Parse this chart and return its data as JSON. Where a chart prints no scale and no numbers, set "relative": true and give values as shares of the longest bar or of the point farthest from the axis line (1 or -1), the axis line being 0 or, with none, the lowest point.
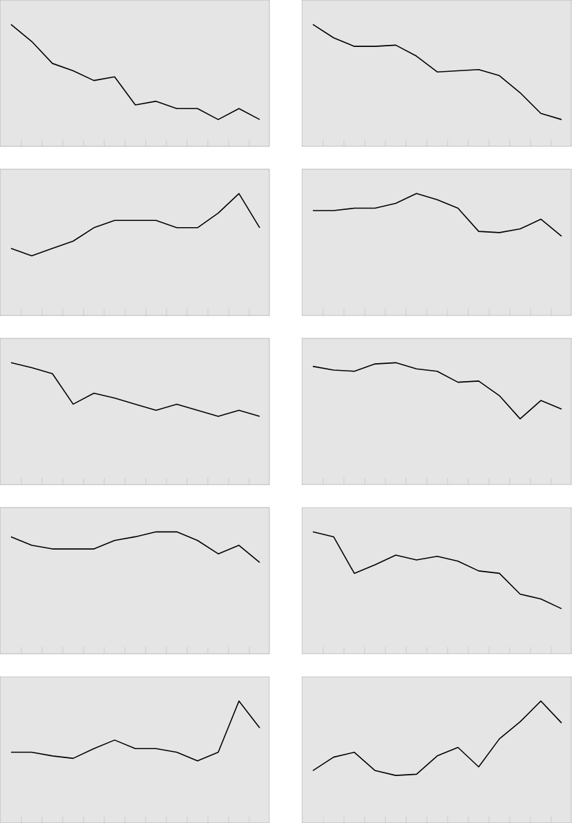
{
  "chart_data": [
    {
      "type": "line",
      "relative": true,
      "color": "#000000",
      "categories": [
        null,
        null,
        null,
        null,
        null,
        null,
        null,
        null,
        null,
        null,
        null,
        null,
        null
      ],
      "values": [
        1,
        0.86,
        0.68,
        0.62,
        0.54,
        0.57,
        0.34,
        0.37,
        0.31,
        0.31,
        0.22,
        0.31,
        0.22
      ]
    },
    {
      "type": "line",
      "relative": true,
      "color": "#000000",
      "categories": [
        null,
        null,
        null,
        null,
        null,
        null,
        null,
        null,
        null,
        null,
        null,
        null,
        null
      ],
      "values": [
        1,
        0.89,
        0.82,
        0.82,
        0.83,
        0.74,
        0.61,
        0.62,
        0.63,
        0.58,
        0.44,
        0.27,
        0.22
      ]
    },
    {
      "type": "line",
      "relative": true,
      "color": "#000000",
      "categories": [
        null,
        null,
        null,
        null,
        null,
        null,
        null,
        null,
        null,
        null,
        null,
        null,
        null
      ],
      "values": [
        0.55,
        0.49,
        0.55,
        0.61,
        0.72,
        0.78,
        0.78,
        0.78,
        0.72,
        0.72,
        0.84,
        1,
        0.72
      ]
    },
    {
      "type": "line",
      "relative": true,
      "color": "#000000",
      "categories": [
        null,
        null,
        null,
        null,
        null,
        null,
        null,
        null,
        null,
        null,
        null,
        null,
        null
      ],
      "values": [
        0.86,
        0.86,
        0.88,
        0.88,
        0.92,
        1,
        0.95,
        0.88,
        0.69,
        0.68,
        0.71,
        0.79,
        0.65
      ]
    },
    {
      "type": "line",
      "relative": true,
      "color": "#000000",
      "categories": [
        null,
        null,
        null,
        null,
        null,
        null,
        null,
        null,
        null,
        null,
        null,
        null,
        null
      ],
      "values": [
        1,
        0.96,
        0.91,
        0.66,
        0.75,
        0.71,
        0.66,
        0.61,
        0.66,
        0.61,
        0.56,
        0.61,
        0.56
      ]
    },
    {
      "type": "line",
      "relative": true,
      "color": "#000000",
      "categories": [
        null,
        null,
        null,
        null,
        null,
        null,
        null,
        null,
        null,
        null,
        null,
        null,
        null
      ],
      "values": [
        0.97,
        0.94,
        0.93,
        0.99,
        1,
        0.95,
        0.93,
        0.84,
        0.85,
        0.73,
        0.54,
        0.69,
        0.62
      ]
    },
    {
      "type": "line",
      "relative": true,
      "color": "#000000",
      "categories": [
        null,
        null,
        null,
        null,
        null,
        null,
        null,
        null,
        null,
        null,
        null,
        null,
        null
      ],
      "values": [
        0.96,
        0.89,
        0.86,
        0.86,
        0.86,
        0.93,
        0.96,
        1,
        1,
        0.93,
        0.82,
        0.89,
        0.75
      ]
    },
    {
      "type": "line",
      "relative": true,
      "color": "#000000",
      "categories": [
        null,
        null,
        null,
        null,
        null,
        null,
        null,
        null,
        null,
        null,
        null,
        null,
        null
      ],
      "values": [
        1,
        0.96,
        0.66,
        0.73,
        0.81,
        0.77,
        0.8,
        0.76,
        0.68,
        0.66,
        0.49,
        0.45,
        0.37
      ]
    },
    {
      "type": "line",
      "relative": true,
      "color": "#000000",
      "categories": [
        null,
        null,
        null,
        null,
        null,
        null,
        null,
        null,
        null,
        null,
        null,
        null,
        null
      ],
      "values": [
        0.58,
        0.58,
        0.55,
        0.53,
        0.61,
        0.68,
        0.61,
        0.61,
        0.58,
        0.51,
        0.58,
        1,
        0.78
      ]
    },
    {
      "type": "line",
      "relative": true,
      "color": "#000000",
      "categories": [
        null,
        null,
        null,
        null,
        null,
        null,
        null,
        null,
        null,
        null,
        null,
        null,
        null
      ],
      "values": [
        0.43,
        0.54,
        0.58,
        0.43,
        0.39,
        0.4,
        0.55,
        0.62,
        0.46,
        0.69,
        0.83,
        1,
        0.82
      ]
    }
  ]
}
